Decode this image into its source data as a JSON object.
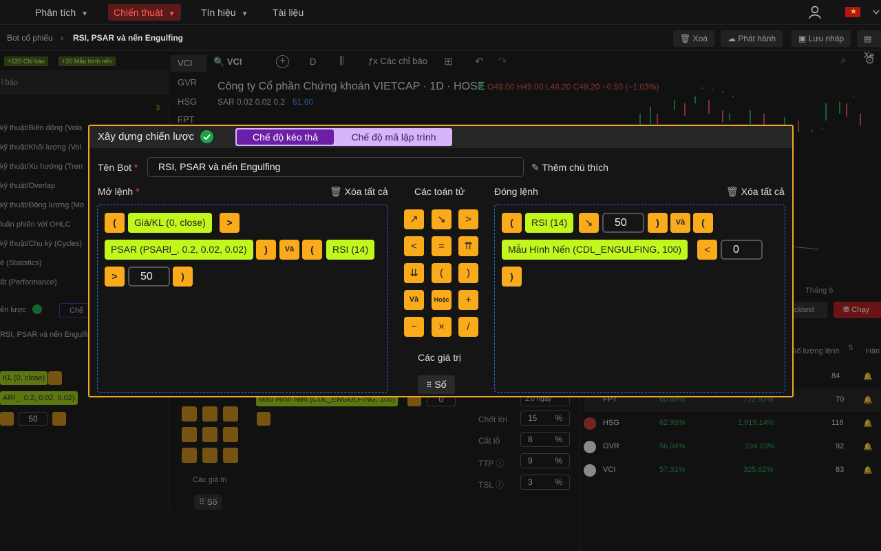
{
  "nav": {
    "items": [
      "Phân tích",
      "Chiến thuật",
      "Tín hiệu",
      "Tài liệu"
    ],
    "active": "Chiến thuật"
  },
  "subbar": {
    "breadcrumb_parent": "Bot cổ phiếu",
    "breadcrumb_current": "RSI, PSAR và nến Engulfing",
    "actions": [
      "Xoá",
      "Phát hành",
      "Lưu nháp",
      "Xe"
    ]
  },
  "background": {
    "sidebar": {
      "tags": [
        "+120 Chỉ báo",
        "+20 Mẫu hình nến"
      ],
      "search_label": "ỉ báo",
      "count": "3",
      "categories": [
        "kỹ thuật/Biến động (Vola",
        "kỹ thuật/Khối lượng (Vol",
        "kỹ thuật/Xu hướng (Tren",
        "kỹ thuật/Overlap",
        "kỹ thuật/Động lượng (Mo",
        "luân phiên với OHLC",
        "kỹ thuật/Chu kỳ (Cycles)",
        "ê (Statistics)",
        "ất (Performance)"
      ],
      "strategy_label": "ến lược",
      "mode_chip": "Chế",
      "name_value": "RSI, PSAR và nến Engulfin",
      "blocks": [
        "KL (0, close)",
        "ARI_, 0.2, 0.02, 0.02)",
        "50"
      ]
    },
    "chart": {
      "symbol": "VCI",
      "interval": "D",
      "indicators_label": "Các chỉ báo",
      "tickers": [
        "VCI",
        "GVR",
        "HSG",
        "FPT"
      ],
      "company": "Công ty Cổ phần Chứng khoán VIETCAP · 1D · HOSE",
      "ohlc": "O49.00  H49.00  L48.20  C48.20  −0.50 (−1.03%)",
      "sar_label": "SAR  0.02  0.02  0.2",
      "sar_value": "51.60",
      "month_label": "Tháng 6"
    },
    "mid": {
      "mini_block": "Mẫu Hình Nến (CDL_ENGULFING, 100)",
      "mini_num": "0",
      "values_label": "Các giá trị",
      "so_label": "Số"
    },
    "settings": {
      "period_value": "2.0 ngày",
      "rows": [
        {
          "label": "Chốt lời",
          "value": "15",
          "unit": "%"
        },
        {
          "label": "Cắt lỗ",
          "value": "8",
          "unit": "%"
        },
        {
          "label": "TTP",
          "value": "9",
          "unit": "%"
        },
        {
          "label": "TSL",
          "value": "3",
          "unit": "%"
        }
      ]
    },
    "right": {
      "backtest_label": "acktest",
      "run_label": "Chạy",
      "col_orders": "Số lượng lệnh",
      "col_action": "Hàn",
      "rows": [
        {
          "ticker": "",
          "rate": "",
          "profit": "",
          "orders": "84"
        },
        {
          "ticker": "FPT",
          "rate": "60.68%",
          "profit": "722.93%",
          "orders": "70"
        },
        {
          "ticker": "HSG",
          "rate": "62.93%",
          "profit": "1,919.14%",
          "orders": "116"
        },
        {
          "ticker": "GVR",
          "rate": "56.04%",
          "profit": "194.03%",
          "orders": "92"
        },
        {
          "ticker": "VCI",
          "rate": "57.31%",
          "profit": "325.62%",
          "orders": "83"
        }
      ]
    }
  },
  "modal": {
    "title": "Xây dựng chiến lược",
    "mode_drag": "Chế độ kéo thả",
    "mode_code": "Chế độ mã lập trình",
    "bot_name_label": "Tên Bot",
    "bot_name_value": "RSI, PSAR và nến Engulfing",
    "add_note": "Thêm chú thích",
    "open_label": "Mở lệnh",
    "clear_all": "Xóa tất cả",
    "operators_label": "Các toán tử",
    "close_label": "Đóng lệnh",
    "values_label": "Các giá trị",
    "number_button": "Số",
    "open_blocks": {
      "price": "Giá/KL (0, close)",
      "psar": "PSAR (PSARl_, 0.2, 0.02, 0.02)",
      "and": "Và",
      "rsi": "RSI (14)",
      "num": "50"
    },
    "close_blocks": {
      "rsi": "RSI (14)",
      "num": "50",
      "and": "Và",
      "pattern": "Mẫu Hình Nến (CDL_ENGULFING, 100)",
      "num2": "0"
    },
    "operators": {
      "and": "Và",
      "or": "Hoặc"
    }
  }
}
